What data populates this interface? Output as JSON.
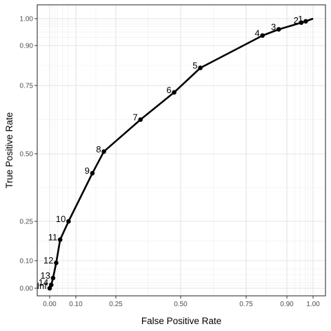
{
  "chart_data": {
    "type": "line",
    "title": "",
    "xlabel": "False Positive Rate",
    "ylabel": "True Positive Rate",
    "xlim": [
      0,
      1
    ],
    "ylim": [
      0,
      1
    ],
    "x_ticks": [
      0.0,
      0.1,
      0.25,
      0.5,
      0.75,
      0.9,
      1.0
    ],
    "x_tick_labels": [
      "0.00",
      "0.10",
      "0.25",
      "0.50",
      "0.75",
      "0.90",
      "1.00"
    ],
    "y_ticks": [
      0.0,
      0.1,
      0.25,
      0.5,
      0.75,
      0.9,
      1.0
    ],
    "y_tick_labels": [
      "0.00",
      "0.10",
      "0.25",
      "0.50",
      "0.75",
      "0.90",
      "1.00"
    ],
    "x_scale": "probit-style (stretched near 0 and 1)",
    "grid": true,
    "theme": "black-and-white with light gray grid",
    "line_color": "#000000",
    "series": [
      {
        "points": [
          {
            "label": "1",
            "x": 0.972,
            "y": 0.99
          },
          {
            "label": "2",
            "x": 0.955,
            "y": 0.985
          },
          {
            "label": "3",
            "x": 0.87,
            "y": 0.96
          },
          {
            "label": "4",
            "x": 0.81,
            "y": 0.937
          },
          {
            "label": "5",
            "x": 0.575,
            "y": 0.816
          },
          {
            "label": "6",
            "x": 0.475,
            "y": 0.725
          },
          {
            "label": "7",
            "x": 0.345,
            "y": 0.625
          },
          {
            "label": "8",
            "x": 0.205,
            "y": 0.508
          },
          {
            "label": "9",
            "x": 0.162,
            "y": 0.428
          },
          {
            "label": "10",
            "x": 0.072,
            "y": 0.25
          },
          {
            "label": "11",
            "x": 0.04,
            "y": 0.18
          },
          {
            "label": "12",
            "x": 0.025,
            "y": 0.092
          },
          {
            "label": "13",
            "x": 0.013,
            "y": 0.037
          },
          {
            "label": "14",
            "x": 0.006,
            "y": 0.012
          },
          {
            "label": "Inf",
            "x": 0.0,
            "y": 0.0
          }
        ]
      }
    ]
  }
}
